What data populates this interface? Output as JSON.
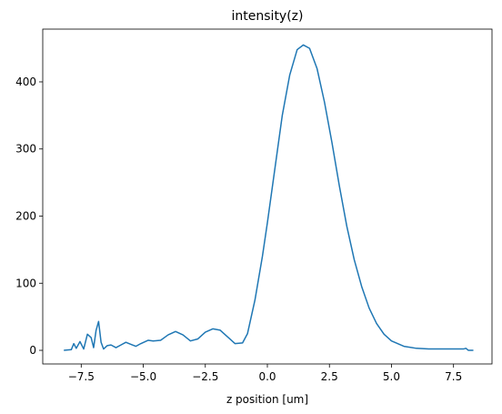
{
  "chart_data": {
    "type": "line",
    "title": "intensity(z)",
    "x_label": "z position [um]",
    "x": [
      -8.2,
      -7.9,
      -7.8,
      -7.7,
      -7.55,
      -7.4,
      -7.25,
      -7.1,
      -7.0,
      -6.9,
      -6.8,
      -6.7,
      -6.6,
      -6.45,
      -6.3,
      -6.1,
      -5.9,
      -5.7,
      -5.5,
      -5.3,
      -5.1,
      -4.8,
      -4.6,
      -4.3,
      -4.0,
      -3.7,
      -3.4,
      -3.1,
      -2.8,
      -2.5,
      -2.2,
      -1.9,
      -1.6,
      -1.3,
      -1.0,
      -0.8,
      -0.5,
      -0.2,
      0.0,
      0.3,
      0.6,
      0.9,
      1.2,
      1.45,
      1.7,
      2.0,
      2.3,
      2.6,
      2.9,
      3.2,
      3.5,
      3.8,
      4.1,
      4.4,
      4.7,
      5.0,
      5.5,
      6.0,
      6.5,
      7.0,
      7.5,
      7.9,
      8.0,
      8.1,
      8.3
    ],
    "values": [
      0,
      1,
      10,
      3,
      13,
      2,
      24,
      19,
      4,
      30,
      43,
      12,
      2,
      7,
      8,
      4,
      8,
      12,
      9,
      6,
      10,
      15,
      14,
      15,
      23,
      28,
      23,
      14,
      17,
      27,
      32,
      30,
      20,
      10,
      11,
      25,
      75,
      140,
      190,
      270,
      350,
      410,
      448,
      455,
      450,
      420,
      370,
      310,
      245,
      185,
      135,
      95,
      63,
      40,
      24,
      14,
      6,
      3,
      2,
      2,
      2,
      2,
      3,
      0,
      0
    ],
    "color": "#1f77b4",
    "xlim": [
      -9.05,
      9.05
    ],
    "xticks": [
      {
        "value": -7.5,
        "label": "−7.5"
      },
      {
        "value": -5,
        "label": "−5.0"
      },
      {
        "value": -2.5,
        "label": "−2.5"
      },
      {
        "value": 0,
        "label": "0.0"
      },
      {
        "value": 2.5,
        "label": "2.5"
      },
      {
        "value": 5,
        "label": "5.0"
      },
      {
        "value": 7.5,
        "label": "7.5"
      }
    ],
    "ylim": [
      -20.3,
      478.6
    ],
    "yticks": [
      0,
      100,
      200,
      300,
      400
    ]
  }
}
